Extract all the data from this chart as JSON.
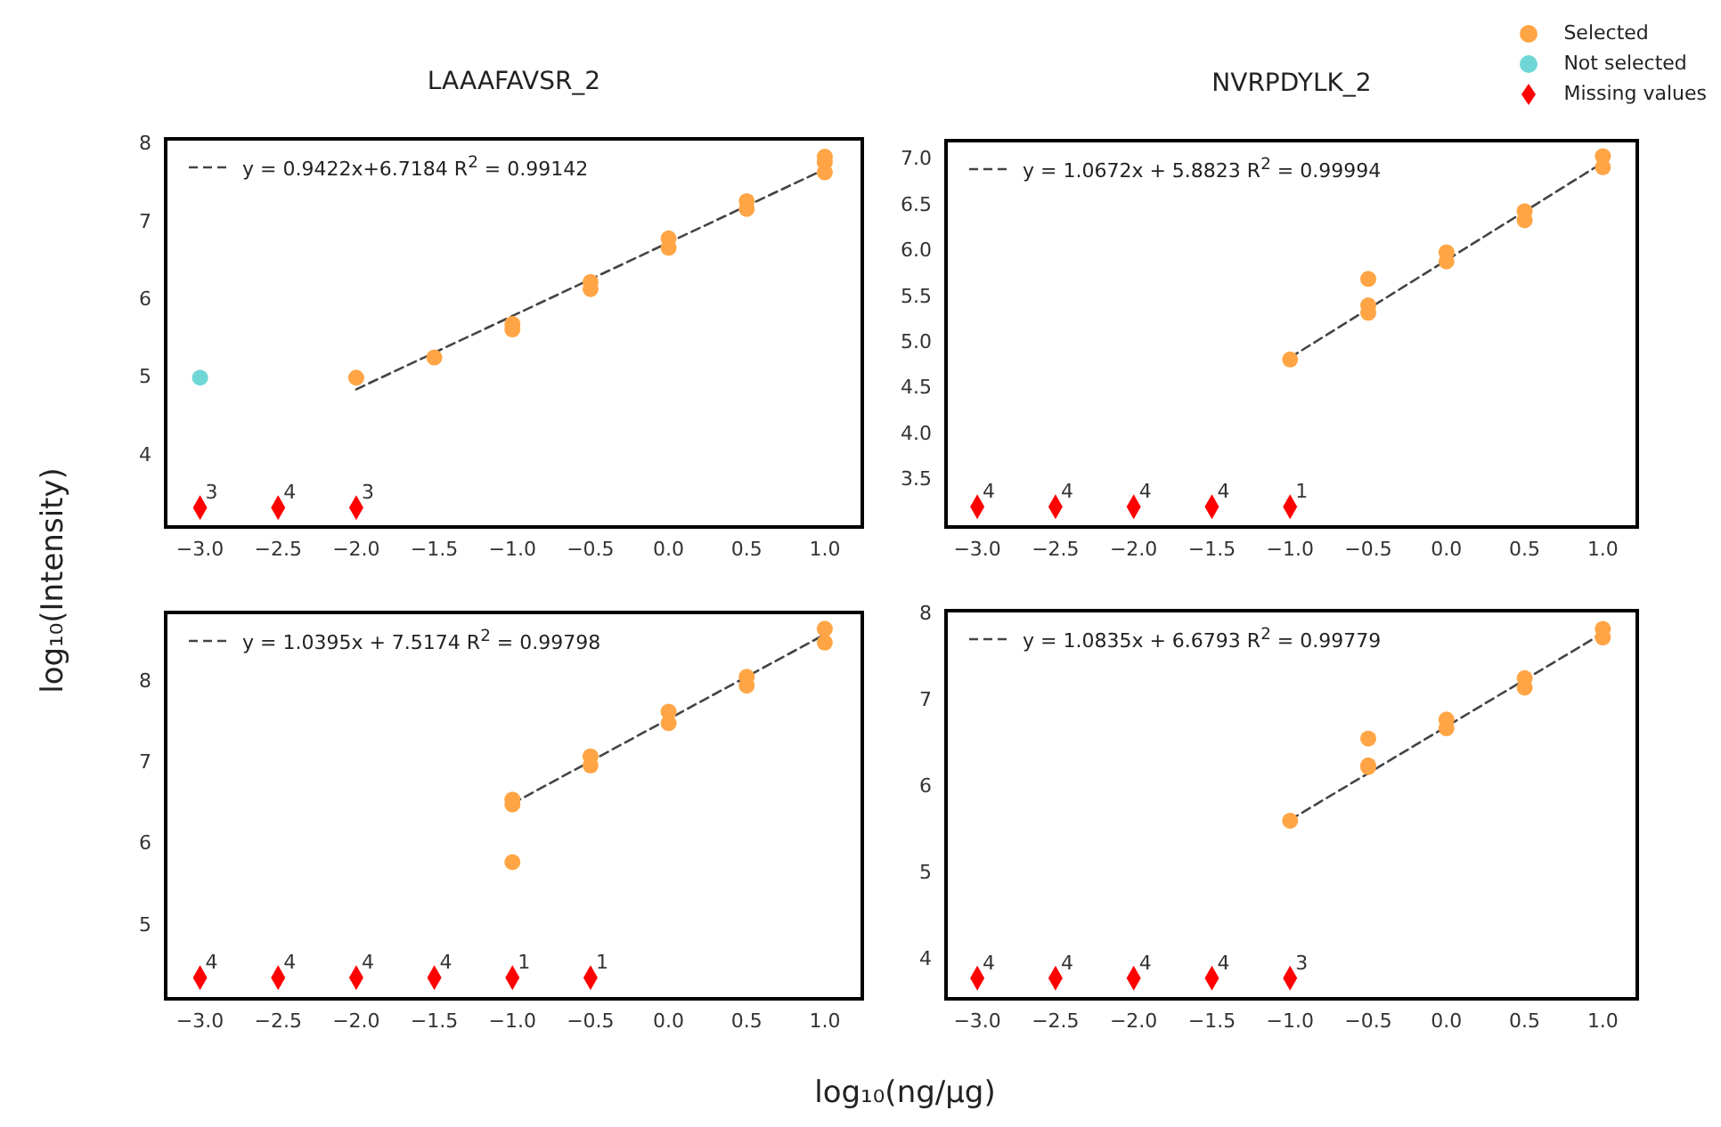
{
  "chart_data": [
    {
      "type": "scatter",
      "title": "LAAAFAVSR_2",
      "ylabel": "log₁₀(Intensity)",
      "legend": "top right",
      "xlim": [
        -3.22,
        1.24
      ],
      "xticks": [
        {
          "value": -3,
          "label": "−3.0"
        },
        {
          "value": -2.5,
          "label": "−2.5"
        },
        {
          "value": -2,
          "label": "−2.0"
        },
        {
          "value": -1.5,
          "label": "−1.5"
        },
        {
          "value": -1,
          "label": "−1.0"
        },
        {
          "value": -0.5,
          "label": "−0.5"
        },
        {
          "value": 0,
          "label": "0.0"
        },
        {
          "value": 0.5,
          "label": "0.5"
        },
        {
          "value": 1,
          "label": "1.0"
        }
      ],
      "ylim": [
        3.06,
        8.05
      ],
      "yticks": [
        4,
        5,
        6,
        7,
        8
      ],
      "series": [
        {
          "name": "Selected",
          "type": "scatter",
          "marker": "circle",
          "color": "#ffa545",
          "x": [
            -2,
            -1.5,
            -1,
            -1,
            -0.5,
            -0.5,
            0,
            0,
            0.5,
            0.5,
            1,
            1,
            1
          ],
          "values": [
            4.98,
            5.24,
            5.67,
            5.6,
            6.21,
            6.12,
            6.77,
            6.65,
            7.25,
            7.15,
            7.82,
            7.75,
            7.62
          ]
        },
        {
          "name": "Not selected",
          "type": "scatter",
          "marker": "circle",
          "color": "#6fd6d6",
          "x": [
            -3
          ],
          "values": [
            4.98
          ]
        },
        {
          "name": "Missing values",
          "type": "scatter",
          "marker": "diamond",
          "color": "#ff0000",
          "x": [
            -3,
            -2.5,
            -2
          ],
          "values": [
            3.31,
            3.31,
            3.31
          ]
        },
        {
          "name": "y = 0.9422x+6.7184  R$^{2}$ = 0.99142",
          "type": "line",
          "line_style": "dashed",
          "color": "#444444",
          "x": [
            -2,
            1
          ],
          "values": [
            4.83,
            7.66
          ]
        }
      ],
      "annotations": [
        {
          "text": "3",
          "x": -3,
          "y": 3.31
        },
        {
          "text": "4",
          "x": -2.5,
          "y": 3.31
        },
        {
          "text": "3",
          "x": -2,
          "y": 3.31
        }
      ]
    },
    {
      "type": "scatter",
      "title": "NVRPDYLK_2",
      "legend": "top left",
      "xlim": [
        -3.2,
        1.22
      ],
      "xticks": [
        {
          "value": -3,
          "label": "−3.0"
        },
        {
          "value": -2.5,
          "label": "−2.5"
        },
        {
          "value": -2,
          "label": "−2.0"
        },
        {
          "value": -1.5,
          "label": "−1.5"
        },
        {
          "value": -1,
          "label": "−1.0"
        },
        {
          "value": -0.5,
          "label": "−0.5"
        },
        {
          "value": 0,
          "label": "0.0"
        },
        {
          "value": 0.5,
          "label": "0.5"
        },
        {
          "value": 1,
          "label": "1.0"
        }
      ],
      "ylim": [
        2.97,
        7.19
      ],
      "yticks": [
        {
          "value": 3.5,
          "label": "3.5"
        },
        {
          "value": 4,
          "label": "4.0"
        },
        {
          "value": 4.5,
          "label": "4.5"
        },
        {
          "value": 5,
          "label": "5.0"
        },
        {
          "value": 5.5,
          "label": "5.5"
        },
        {
          "value": 6,
          "label": "6.0"
        },
        {
          "value": 6.5,
          "label": "6.5"
        },
        {
          "value": 7,
          "label": "7.0"
        }
      ],
      "series": [
        {
          "type": "scatter",
          "marker": "circle",
          "color": "#ffa545",
          "x": [
            -1,
            -0.5,
            -0.5,
            -0.5,
            0,
            0,
            0.5,
            0.5,
            1,
            1
          ],
          "values": [
            4.8,
            5.68,
            5.39,
            5.31,
            5.97,
            5.87,
            6.42,
            6.32,
            7.02,
            6.9
          ]
        },
        {
          "type": "scatter",
          "marker": "diamond",
          "color": "#ff0000",
          "x": [
            -3,
            -2.5,
            -2,
            -1.5,
            -1
          ],
          "values": [
            3.19,
            3.19,
            3.19,
            3.19,
            3.19
          ]
        },
        {
          "name": "y = 1.0672x + 5.8823  R$^{2}$ = 0.99994",
          "type": "line",
          "line_style": "dashed",
          "color": "#444444",
          "x": [
            -1,
            1
          ],
          "values": [
            4.82,
            6.95
          ]
        }
      ],
      "annotations": [
        {
          "text": "4",
          "x": -3,
          "y": 3.19
        },
        {
          "text": "4",
          "x": -2.5,
          "y": 3.19
        },
        {
          "text": "4",
          "x": -2,
          "y": 3.19
        },
        {
          "text": "4",
          "x": -1.5,
          "y": 3.19
        },
        {
          "text": "1",
          "x": -1,
          "y": 3.19
        }
      ]
    },
    {
      "type": "scatter",
      "xlabel": "log₁₀(ng/μg)",
      "legend": "top left",
      "xlim": [
        -3.22,
        1.24
      ],
      "xticks": [
        {
          "value": -3,
          "label": "−3.0"
        },
        {
          "value": -2.5,
          "label": "−2.5"
        },
        {
          "value": -2,
          "label": "−2.0"
        },
        {
          "value": -1.5,
          "label": "−1.5"
        },
        {
          "value": -1,
          "label": "−1.0"
        },
        {
          "value": -0.5,
          "label": "−0.5"
        },
        {
          "value": 0,
          "label": "0.0"
        },
        {
          "value": 0.5,
          "label": "0.5"
        },
        {
          "value": 1,
          "label": "1.0"
        }
      ],
      "ylim": [
        4.08,
        8.83
      ],
      "yticks": [
        5,
        6,
        7,
        8
      ],
      "series": [
        {
          "type": "scatter",
          "marker": "circle",
          "color": "#ffa545",
          "x": [
            -1,
            -1,
            -1,
            -0.5,
            -0.5,
            0,
            0,
            0.5,
            0.5,
            1,
            1
          ],
          "values": [
            6.53,
            6.47,
            5.76,
            7.06,
            6.95,
            7.61,
            7.47,
            8.04,
            7.93,
            8.63,
            8.46
          ]
        },
        {
          "type": "scatter",
          "marker": "diamond",
          "color": "#ff0000",
          "x": [
            -3,
            -2.5,
            -2,
            -1.5,
            -1,
            -0.5
          ],
          "values": [
            4.34,
            4.34,
            4.34,
            4.34,
            4.34,
            4.34
          ]
        },
        {
          "name": "y = 1.0395x + 7.5174  R$^{2}$ = 0.99798",
          "type": "line",
          "line_style": "dashed",
          "color": "#444444",
          "x": [
            -1,
            1
          ],
          "values": [
            6.48,
            8.56
          ]
        }
      ],
      "annotations": [
        {
          "text": "4",
          "x": -3,
          "y": 4.34
        },
        {
          "text": "4",
          "x": -2.5,
          "y": 4.34
        },
        {
          "text": "4",
          "x": -2,
          "y": 4.34
        },
        {
          "text": "4",
          "x": -1.5,
          "y": 4.34
        },
        {
          "text": "1",
          "x": -1,
          "y": 4.34
        },
        {
          "text": "1",
          "x": -0.5,
          "y": 4.34
        }
      ]
    },
    {
      "type": "scatter",
      "legend": "top left",
      "xlim": [
        -3.2,
        1.22
      ],
      "xticks": [
        {
          "value": -3,
          "label": "−3.0"
        },
        {
          "value": -2.5,
          "label": "−2.5"
        },
        {
          "value": -2,
          "label": "−2.0"
        },
        {
          "value": -1.5,
          "label": "−1.5"
        },
        {
          "value": -1,
          "label": "−1.0"
        },
        {
          "value": -0.5,
          "label": "−0.5"
        },
        {
          "value": 0,
          "label": "0.0"
        },
        {
          "value": 0.5,
          "label": "0.5"
        },
        {
          "value": 1,
          "label": "1.0"
        }
      ],
      "ylim": [
        3.53,
        8.02
      ],
      "yticks": [
        4,
        5,
        6,
        7,
        8
      ],
      "series": [
        {
          "type": "scatter",
          "marker": "circle",
          "color": "#ffa545",
          "x": [
            -1,
            -0.5,
            -0.5,
            -0.5,
            0,
            0,
            0.5,
            0.5,
            1,
            1
          ],
          "values": [
            5.59,
            6.54,
            6.23,
            6.21,
            6.76,
            6.66,
            7.24,
            7.13,
            7.81,
            7.71
          ]
        },
        {
          "type": "scatter",
          "marker": "diamond",
          "color": "#ff0000",
          "x": [
            -3,
            -2.5,
            -2,
            -1.5,
            -1
          ],
          "values": [
            3.77,
            3.77,
            3.77,
            3.77,
            3.77
          ]
        },
        {
          "name": "y = 1.0835x + 6.6793  R$^{2}$ = 0.99779",
          "type": "line",
          "line_style": "dashed",
          "color": "#444444",
          "x": [
            -1,
            1
          ],
          "values": [
            5.6,
            7.76
          ]
        }
      ],
      "annotations": [
        {
          "text": "4",
          "x": -3,
          "y": 3.77
        },
        {
          "text": "4",
          "x": -2.5,
          "y": 3.77
        },
        {
          "text": "4",
          "x": -2,
          "y": 3.77
        },
        {
          "text": "4",
          "x": -1.5,
          "y": 3.77
        },
        {
          "text": "3",
          "x": -1,
          "y": 3.77
        }
      ]
    }
  ]
}
